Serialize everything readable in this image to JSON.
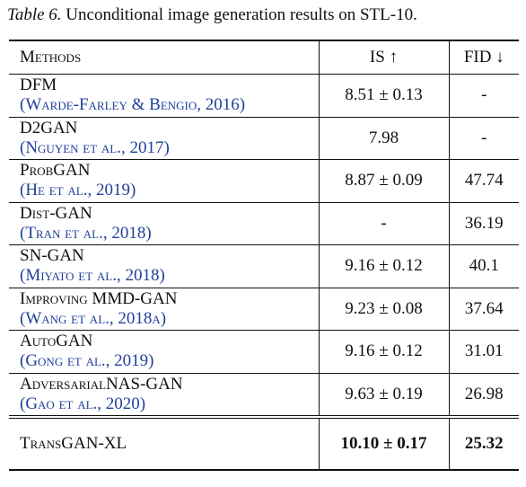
{
  "caption": {
    "label": "Table 6.",
    "text": "Unconditional image generation results on STL-10."
  },
  "table": {
    "header": [
      "Methods",
      "IS ↑",
      "FID ↓"
    ],
    "rows": [
      {
        "method": "DFM",
        "citation": "(Warde-Farley & Bengio, 2016)",
        "is": "8.51 ± 0.13",
        "fid": "-"
      },
      {
        "method": "D2GAN",
        "citation": "(Nguyen et al., 2017)",
        "is": "7.98",
        "fid": "-"
      },
      {
        "method": "ProbGAN",
        "citation": "(He et al., 2019)",
        "is": "8.87 ± 0.09",
        "fid": "47.74"
      },
      {
        "method": "Dist-GAN",
        "citation": "(Tran et al., 2018)",
        "is": "-",
        "fid": "36.19"
      },
      {
        "method": "SN-GAN",
        "citation": "(Miyato et al., 2018)",
        "is": "9.16 ± 0.12",
        "fid": "40.1"
      },
      {
        "method": "Improving MMD-GAN",
        "citation": "(Wang et al., 2018a)",
        "is": "9.23 ± 0.08",
        "fid": "37.64"
      },
      {
        "method": "AutoGAN",
        "citation": "(Gong et al., 2019)",
        "is": "9.16 ± 0.12",
        "fid": "31.01"
      },
      {
        "method": "AdversarialNAS-GAN",
        "citation": "(Gao et al., 2020)",
        "is": "9.63 ± 0.19",
        "fid": "26.98"
      }
    ],
    "highlight": {
      "method": "TransGAN-XL",
      "is": "10.10 ± 0.17",
      "fid": "25.32"
    }
  }
}
